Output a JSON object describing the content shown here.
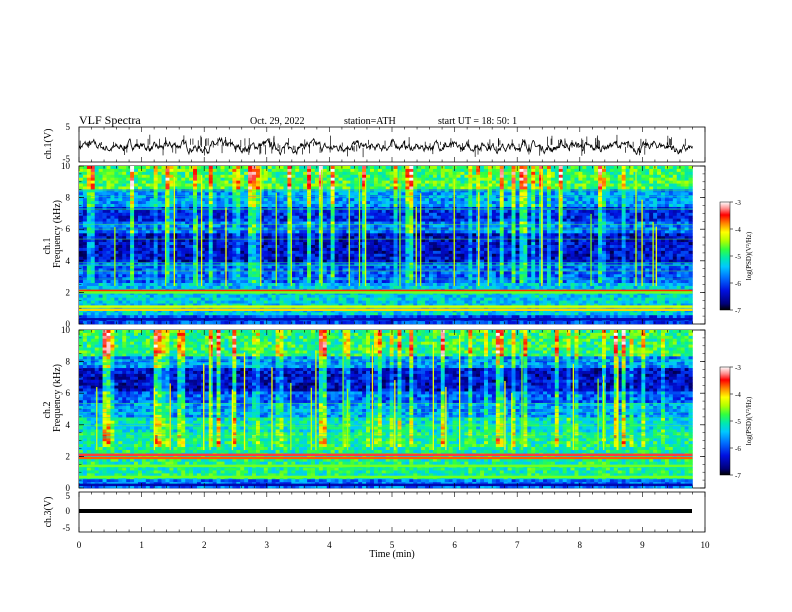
{
  "header": {
    "title": "VLF  Spectra",
    "date": "Oct. 29, 2022",
    "station": "station=ATH",
    "start_ut": "start  UT  =    18: 50: 1"
  },
  "chart_data": [
    {
      "type": "line",
      "name": "ch1-waveform",
      "ylabel": "ch.1(V)",
      "ylim": [
        -5,
        5
      ],
      "yticks": [
        "5",
        "-5"
      ],
      "xlim": [
        0,
        10
      ],
      "color": "#000000"
    },
    {
      "type": "heatmap",
      "name": "ch1-spectrogram",
      "ylabel_line1": "ch.1",
      "ylabel_line2": "Frequency  (kHz)",
      "ylim": [
        0,
        10
      ],
      "yticks": [
        "0",
        "2",
        "4",
        "6",
        "8",
        "10"
      ],
      "xlim": [
        0,
        9.8
      ],
      "colorbar": {
        "label": "log(PSD)(V²/Hz)",
        "range": [
          -7,
          -3
        ],
        "ticks": [
          "-3",
          "-4",
          "-5",
          "-6",
          "-7"
        ]
      },
      "bands": [
        {
          "freq": 2.1,
          "level": -3.6
        },
        {
          "freq": 2.0,
          "level": -4.6
        },
        {
          "freq": 1.1,
          "level": -4.3
        },
        {
          "freq": 0.9,
          "level": -4.0
        },
        {
          "freq": 0.3,
          "level": -6.5
        }
      ]
    },
    {
      "type": "heatmap",
      "name": "ch2-spectrogram",
      "ylabel_line1": "ch.2",
      "ylabel_line2": "Frequency  (kHz)",
      "ylim": [
        0,
        10
      ],
      "yticks": [
        "0",
        "2",
        "4",
        "6",
        "8",
        "10"
      ],
      "xlim": [
        0,
        9.8
      ],
      "colorbar": {
        "label": "log(PSD)(V²/Hz)",
        "range": [
          -7,
          -3
        ],
        "ticks": [
          "-3",
          "-4",
          "-5",
          "-6",
          "-7"
        ]
      },
      "bands": [
        {
          "freq": 2.1,
          "level": -3.4
        },
        {
          "freq": 1.9,
          "level": -3.7
        },
        {
          "freq": 1.4,
          "level": -4.6
        },
        {
          "freq": 0.7,
          "level": -4.6
        },
        {
          "freq": 0.2,
          "level": -6.5
        }
      ]
    },
    {
      "type": "line",
      "name": "ch3-waveform",
      "ylabel": "ch.3(V)",
      "ylim": [
        -5,
        5
      ],
      "yticks": [
        "5",
        "0",
        "-5"
      ],
      "xlim": [
        0,
        10
      ],
      "color": "#000000"
    }
  ],
  "xaxis": {
    "label": "Time  (min)",
    "range": [
      0,
      10
    ],
    "ticks": [
      "0",
      "1",
      "2",
      "3",
      "4",
      "5",
      "6",
      "7",
      "8",
      "9",
      "10"
    ]
  },
  "colors": {
    "scale": [
      "#000000",
      "#0000b0",
      "#0040ff",
      "#00a0ff",
      "#00e0e0",
      "#40ff80",
      "#c0ff00",
      "#ffff00",
      "#ff8000",
      "#ff0000",
      "#ffb0b0",
      "#ffffff"
    ]
  }
}
